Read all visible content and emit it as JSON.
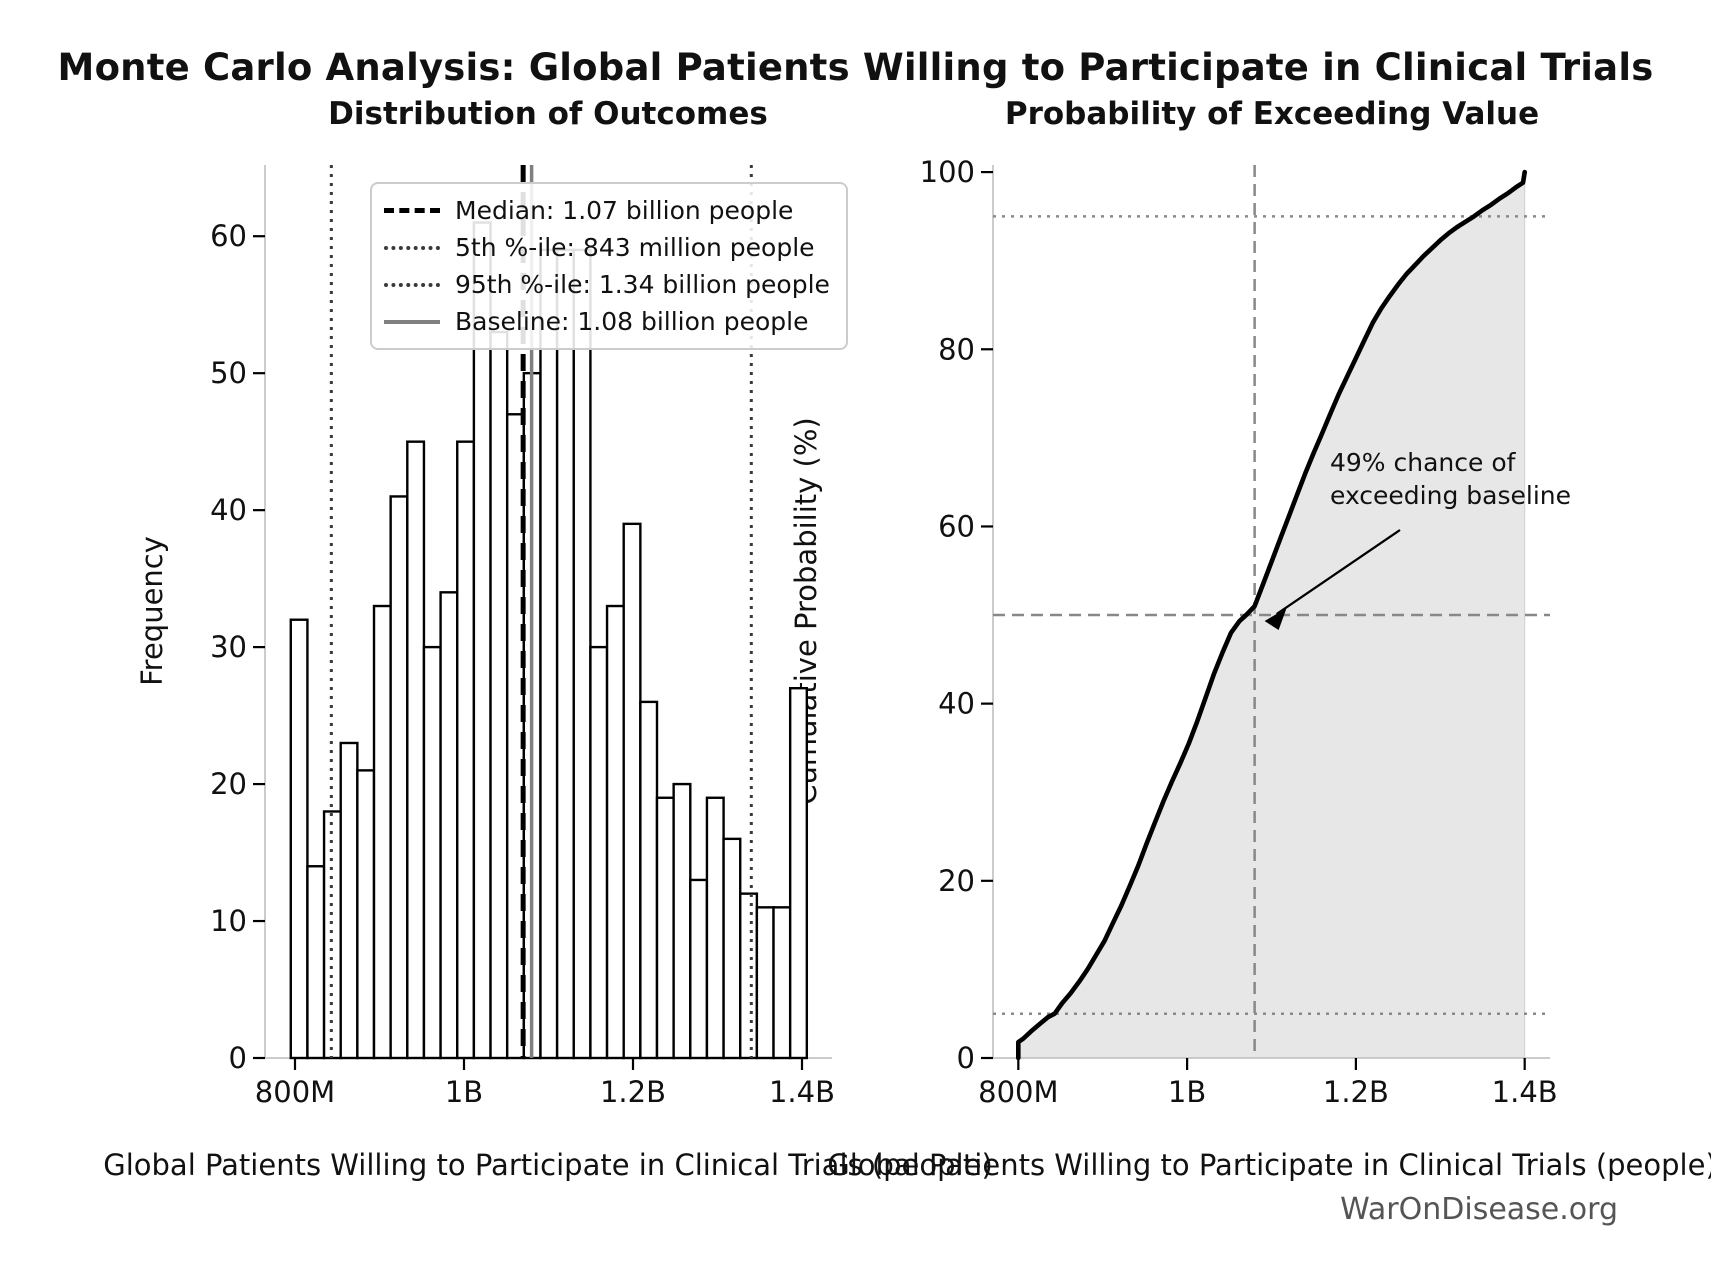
{
  "page": {
    "title": "Monte Carlo Analysis: Global Patients Willing to Participate in Clinical Trials",
    "watermark": "WarOnDisease.org"
  },
  "chart_data": [
    {
      "type": "bar",
      "title": "Distribution of Outcomes",
      "xlabel": "Global Patients Willing to Participate in Clinical Trials (people)",
      "ylabel": "Frequency",
      "x_unit": "millions of people",
      "n_samples": 1000,
      "bin_start": 795,
      "bin_width": 19.7,
      "frequencies": [
        32,
        14,
        18,
        23,
        21,
        33,
        41,
        45,
        30,
        34,
        45,
        61,
        53,
        47,
        50,
        59,
        59,
        59,
        30,
        33,
        39,
        26,
        19,
        20,
        13,
        19,
        16,
        12,
        11,
        11,
        27
      ],
      "xlim": [
        764.5,
        1435.5
      ],
      "ylim": [
        0,
        65.2
      ],
      "x_ticks": [
        {
          "value": 800,
          "label": "800M"
        },
        {
          "value": 1000,
          "label": "1B"
        },
        {
          "value": 1200,
          "label": "1.2B"
        },
        {
          "value": 1400,
          "label": "1.4B"
        }
      ],
      "y_ticks": [
        0,
        10,
        20,
        30,
        40,
        50,
        60
      ],
      "reference_lines": [
        {
          "name": "median",
          "value": 1070,
          "style": "dashed",
          "color": "#000000",
          "width": 5
        },
        {
          "name": "p5",
          "value": 843,
          "style": "dotted",
          "color": "#3a3a3a",
          "width": 3
        },
        {
          "name": "p95",
          "value": 1340,
          "style": "dotted",
          "color": "#3a3a3a",
          "width": 3
        },
        {
          "name": "baseline",
          "value": 1080,
          "style": "solid",
          "color": "#808080",
          "width": 3.5
        }
      ],
      "legend": {
        "items": [
          {
            "label": "Median: 1.07 billion people",
            "line_style": "dashed",
            "color": "#000000"
          },
          {
            "label": "5th %-ile: 843 million people",
            "line_style": "dotted",
            "color": "#3a3a3a"
          },
          {
            "label": "95th %-ile: 1.34 billion people",
            "line_style": "dotted",
            "color": "#3a3a3a"
          },
          {
            "label": "Baseline: 1.08 billion people",
            "line_style": "solid",
            "color": "#808080"
          }
        ]
      }
    },
    {
      "type": "line",
      "title": "Probability of Exceeding Value",
      "xlabel": "Global Patients Willing to Participate in Clinical Trials (people)",
      "ylabel": "Cumulative Probability (%)",
      "x_unit": "millions of people",
      "xlim": [
        770,
        1430
      ],
      "ylim": [
        0,
        100.8
      ],
      "x_ticks": [
        {
          "value": 800,
          "label": "800M"
        },
        {
          "value": 1000,
          "label": "1B"
        },
        {
          "value": 1200,
          "label": "1.2B"
        },
        {
          "value": 1400,
          "label": "1.4B"
        }
      ],
      "y_ticks": [
        0,
        20,
        40,
        60,
        80,
        100
      ],
      "curve": {
        "x": [
          800,
          800,
          806,
          815,
          825,
          835,
          843,
          852,
          862,
          872,
          882,
          892,
          902,
          912,
          922,
          932,
          942,
          952,
          962,
          972,
          982,
          992,
          1002,
          1012,
          1022,
          1032,
          1042,
          1052,
          1062,
          1070,
          1080,
          1090,
          1100,
          1110,
          1120,
          1130,
          1140,
          1150,
          1160,
          1170,
          1180,
          1190,
          1200,
          1210,
          1220,
          1230,
          1240,
          1250,
          1260,
          1270,
          1280,
          1290,
          1300,
          1310,
          1320,
          1330,
          1340,
          1350,
          1360,
          1370,
          1380,
          1390,
          1398,
          1400
        ],
        "y": [
          0,
          1.8,
          2.2,
          3.0,
          3.8,
          4.6,
          5.0,
          6.2,
          7.3,
          8.6,
          10.0,
          11.6,
          13.2,
          15.2,
          17.2,
          19.4,
          21.7,
          24.2,
          26.6,
          29.0,
          31.2,
          33.3,
          35.5,
          38.0,
          40.7,
          43.4,
          45.8,
          48.0,
          49.3,
          50.0,
          51.0,
          53.5,
          56.0,
          58.5,
          61.0,
          63.5,
          66.0,
          68.3,
          70.5,
          72.8,
          75.0,
          77.0,
          79.0,
          81.0,
          83.0,
          84.6,
          86.0,
          87.3,
          88.5,
          89.5,
          90.5,
          91.4,
          92.3,
          93.1,
          93.8,
          94.4,
          95.0,
          95.7,
          96.3,
          97.0,
          97.6,
          98.3,
          98.8,
          100
        ],
        "fill": true
      },
      "reference_lines": [
        {
          "name": "p95-level",
          "axis": "y",
          "value": 95,
          "style": "dotted",
          "color": "#8a8a8a",
          "width": 2.5
        },
        {
          "name": "p5-level",
          "axis": "y",
          "value": 5,
          "style": "dotted",
          "color": "#8a8a8a",
          "width": 2.5
        },
        {
          "name": "fifty-percent",
          "axis": "y",
          "value": 50,
          "style": "dashed",
          "color": "#888888",
          "width": 2.5
        },
        {
          "name": "baseline",
          "axis": "x",
          "value": 1080,
          "style": "dashed",
          "color": "#888888",
          "width": 2.5
        }
      ],
      "annotation": {
        "lines": [
          "49% chance of",
          "exceeding baseline"
        ],
        "exceed_probability_percent": 49,
        "target": {
          "x": 1080,
          "y": 50
        }
      }
    }
  ],
  "colors": {
    "bar_fill": "#ffffff",
    "bar_edge": "#000000",
    "curve": "#000000",
    "curve_fill": "rgba(120,120,120,0.18)",
    "spine": "#cccccc",
    "tick": "#000000",
    "text": "#111111"
  }
}
